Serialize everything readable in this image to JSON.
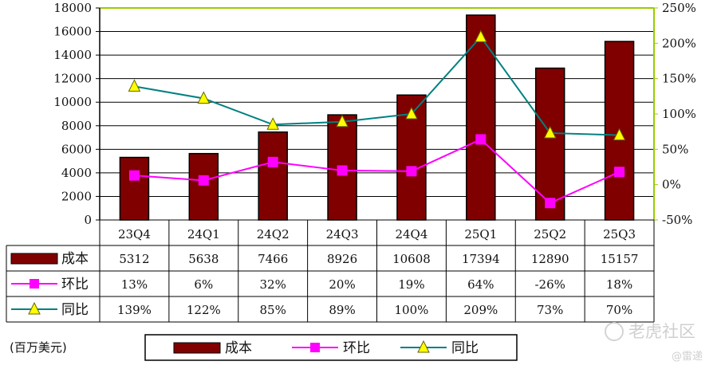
{
  "unit_label": "(百万美元)",
  "watermark": {
    "logo_text": "老虎社区",
    "handle": "@雷递"
  },
  "chart_data": {
    "type": "bar",
    "categories": [
      "23Q4",
      "24Q1",
      "24Q2",
      "24Q3",
      "24Q4",
      "25Q1",
      "25Q2",
      "25Q3"
    ],
    "y_left": {
      "min": 0,
      "max": 18000,
      "step": 2000
    },
    "y_right": {
      "min": -50,
      "max": 250,
      "step": 50,
      "format": "percent"
    },
    "grid": true,
    "legend_position": "bottom",
    "series": [
      {
        "name": "成本",
        "kind": "bar",
        "axis": "left",
        "color": "#800000",
        "values": [
          5312,
          5638,
          7466,
          8926,
          10608,
          17394,
          12890,
          15157
        ],
        "labels": [
          "5312",
          "5638",
          "7466",
          "8926",
          "10608",
          "17394",
          "12890",
          "15157"
        ]
      },
      {
        "name": "环比",
        "kind": "line",
        "axis": "right",
        "color": "#ff00ff",
        "marker": "square",
        "values": [
          13,
          6,
          32,
          20,
          19,
          64,
          -26,
          18
        ],
        "labels": [
          "13%",
          "6%",
          "32%",
          "20%",
          "19%",
          "64%",
          "-26%",
          "18%"
        ]
      },
      {
        "name": "同比",
        "kind": "line",
        "axis": "right",
        "color": "#008080",
        "marker": "triangle",
        "marker_color": "#ffff00",
        "values": [
          139,
          122,
          85,
          89,
          100,
          209,
          73,
          70
        ],
        "labels": [
          "139%",
          "122%",
          "85%",
          "89%",
          "100%",
          "209%",
          "73%",
          "70%"
        ]
      }
    ]
  }
}
